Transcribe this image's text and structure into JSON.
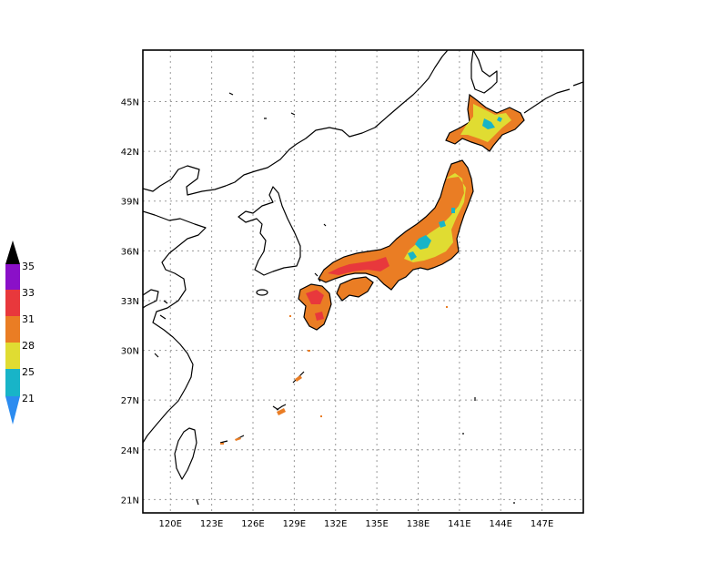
{
  "map": {
    "lat_labels": [
      "45N",
      "42N",
      "39N",
      "36N",
      "33N",
      "30N",
      "27N",
      "24N",
      "21N"
    ],
    "lon_labels": [
      "120E",
      "123E",
      "126E",
      "129E",
      "132E",
      "135E",
      "138E",
      "141E",
      "144E",
      "147E"
    ],
    "lat_values": [
      45,
      42,
      39,
      36,
      33,
      30,
      27,
      24,
      21
    ],
    "lon_values": [
      120,
      123,
      126,
      129,
      132,
      135,
      138,
      141,
      144,
      147
    ],
    "lat_range": [
      20.2,
      48.1
    ],
    "lon_range": [
      118.0,
      150.0
    ],
    "grid": true,
    "grid_style": "dotted"
  },
  "colorbar": {
    "labels": [
      "35",
      "33",
      "31",
      "28",
      "25",
      "21"
    ],
    "colors": {
      "above_35": "#000000",
      "33_35": "#8a10c8",
      "31_33": "#e8383c",
      "28_31": "#ea7d24",
      "25_28": "#e0dc32",
      "21_25": "#18b4c8",
      "below_21": "#2c8cf0"
    },
    "extend": "both"
  }
}
